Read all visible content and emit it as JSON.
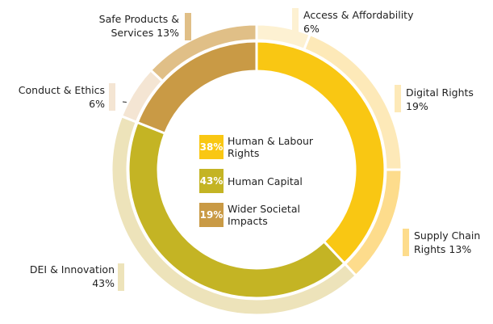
{
  "chart_data": {
    "type": "donut",
    "inner": {
      "categories": [
        "Human & Labour Rights",
        "Human Capital",
        "Wider Societal Impacts"
      ],
      "values": [
        38,
        43,
        19
      ],
      "value_labels": [
        "38%",
        "43%",
        "19%"
      ],
      "colors": [
        "#f9c713",
        "#c4b424",
        "#c99a45"
      ]
    },
    "outer": {
      "categories": [
        "Access & Affordability",
        "Digital Rights",
        "Supply Chain Rights",
        "DEI & Innovation",
        "Conduct & Ethics",
        "Safe Products & Services"
      ],
      "values": [
        6,
        19,
        13,
        43,
        6,
        13
      ],
      "value_labels": [
        "6%",
        "19%",
        "13%",
        "43%",
        "6%",
        "13%"
      ],
      "colors": [
        "#fdf1d2",
        "#fde9b8",
        "#fddc8c",
        "#ede3ba",
        "#f4e5d3",
        "#e0bf87"
      ]
    }
  }
}
